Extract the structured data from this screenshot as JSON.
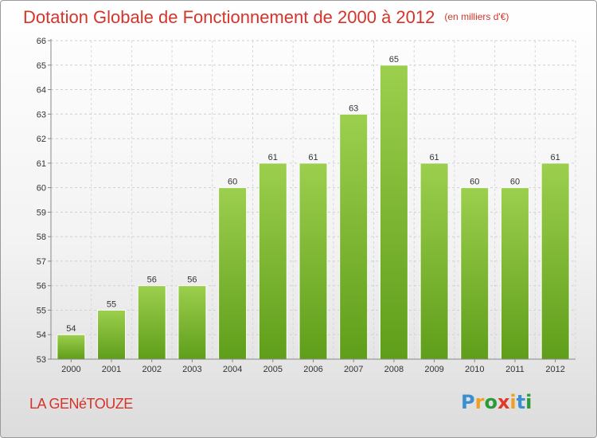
{
  "title": "Dotation Globale de Fonctionnement de 2000 à 2012",
  "subtitle": "(en milliers d'€)",
  "place": "LA GENéTOUZE",
  "logo": {
    "text": "Proxiti",
    "letters": [
      {
        "ch": "P",
        "color": "#3a8fd0"
      },
      {
        "ch": "r",
        "color": "#f0a020"
      },
      {
        "ch": "o",
        "color": "#2a9a3a"
      },
      {
        "ch": "x",
        "color": "#e03a2a"
      },
      {
        "ch": "i",
        "color": "#f0a020"
      },
      {
        "ch": "t",
        "color": "#3a8fd0"
      },
      {
        "ch": "i",
        "color": "#2a9a3a"
      }
    ]
  },
  "chart_data": {
    "type": "bar",
    "categories": [
      "2000",
      "2001",
      "2002",
      "2003",
      "2004",
      "2005",
      "2006",
      "2007",
      "2008",
      "2009",
      "2010",
      "2011",
      "2012"
    ],
    "values": [
      54,
      55,
      56,
      56,
      60,
      61,
      61,
      63,
      65,
      61,
      60,
      60,
      61
    ],
    "ylim": [
      53,
      66
    ],
    "yticks": [
      53,
      54,
      55,
      56,
      57,
      58,
      59,
      60,
      61,
      62,
      63,
      64,
      65,
      66
    ],
    "grid": true,
    "bar_color_top": "#9ccf4e",
    "bar_color_bottom": "#5f9e1a"
  }
}
